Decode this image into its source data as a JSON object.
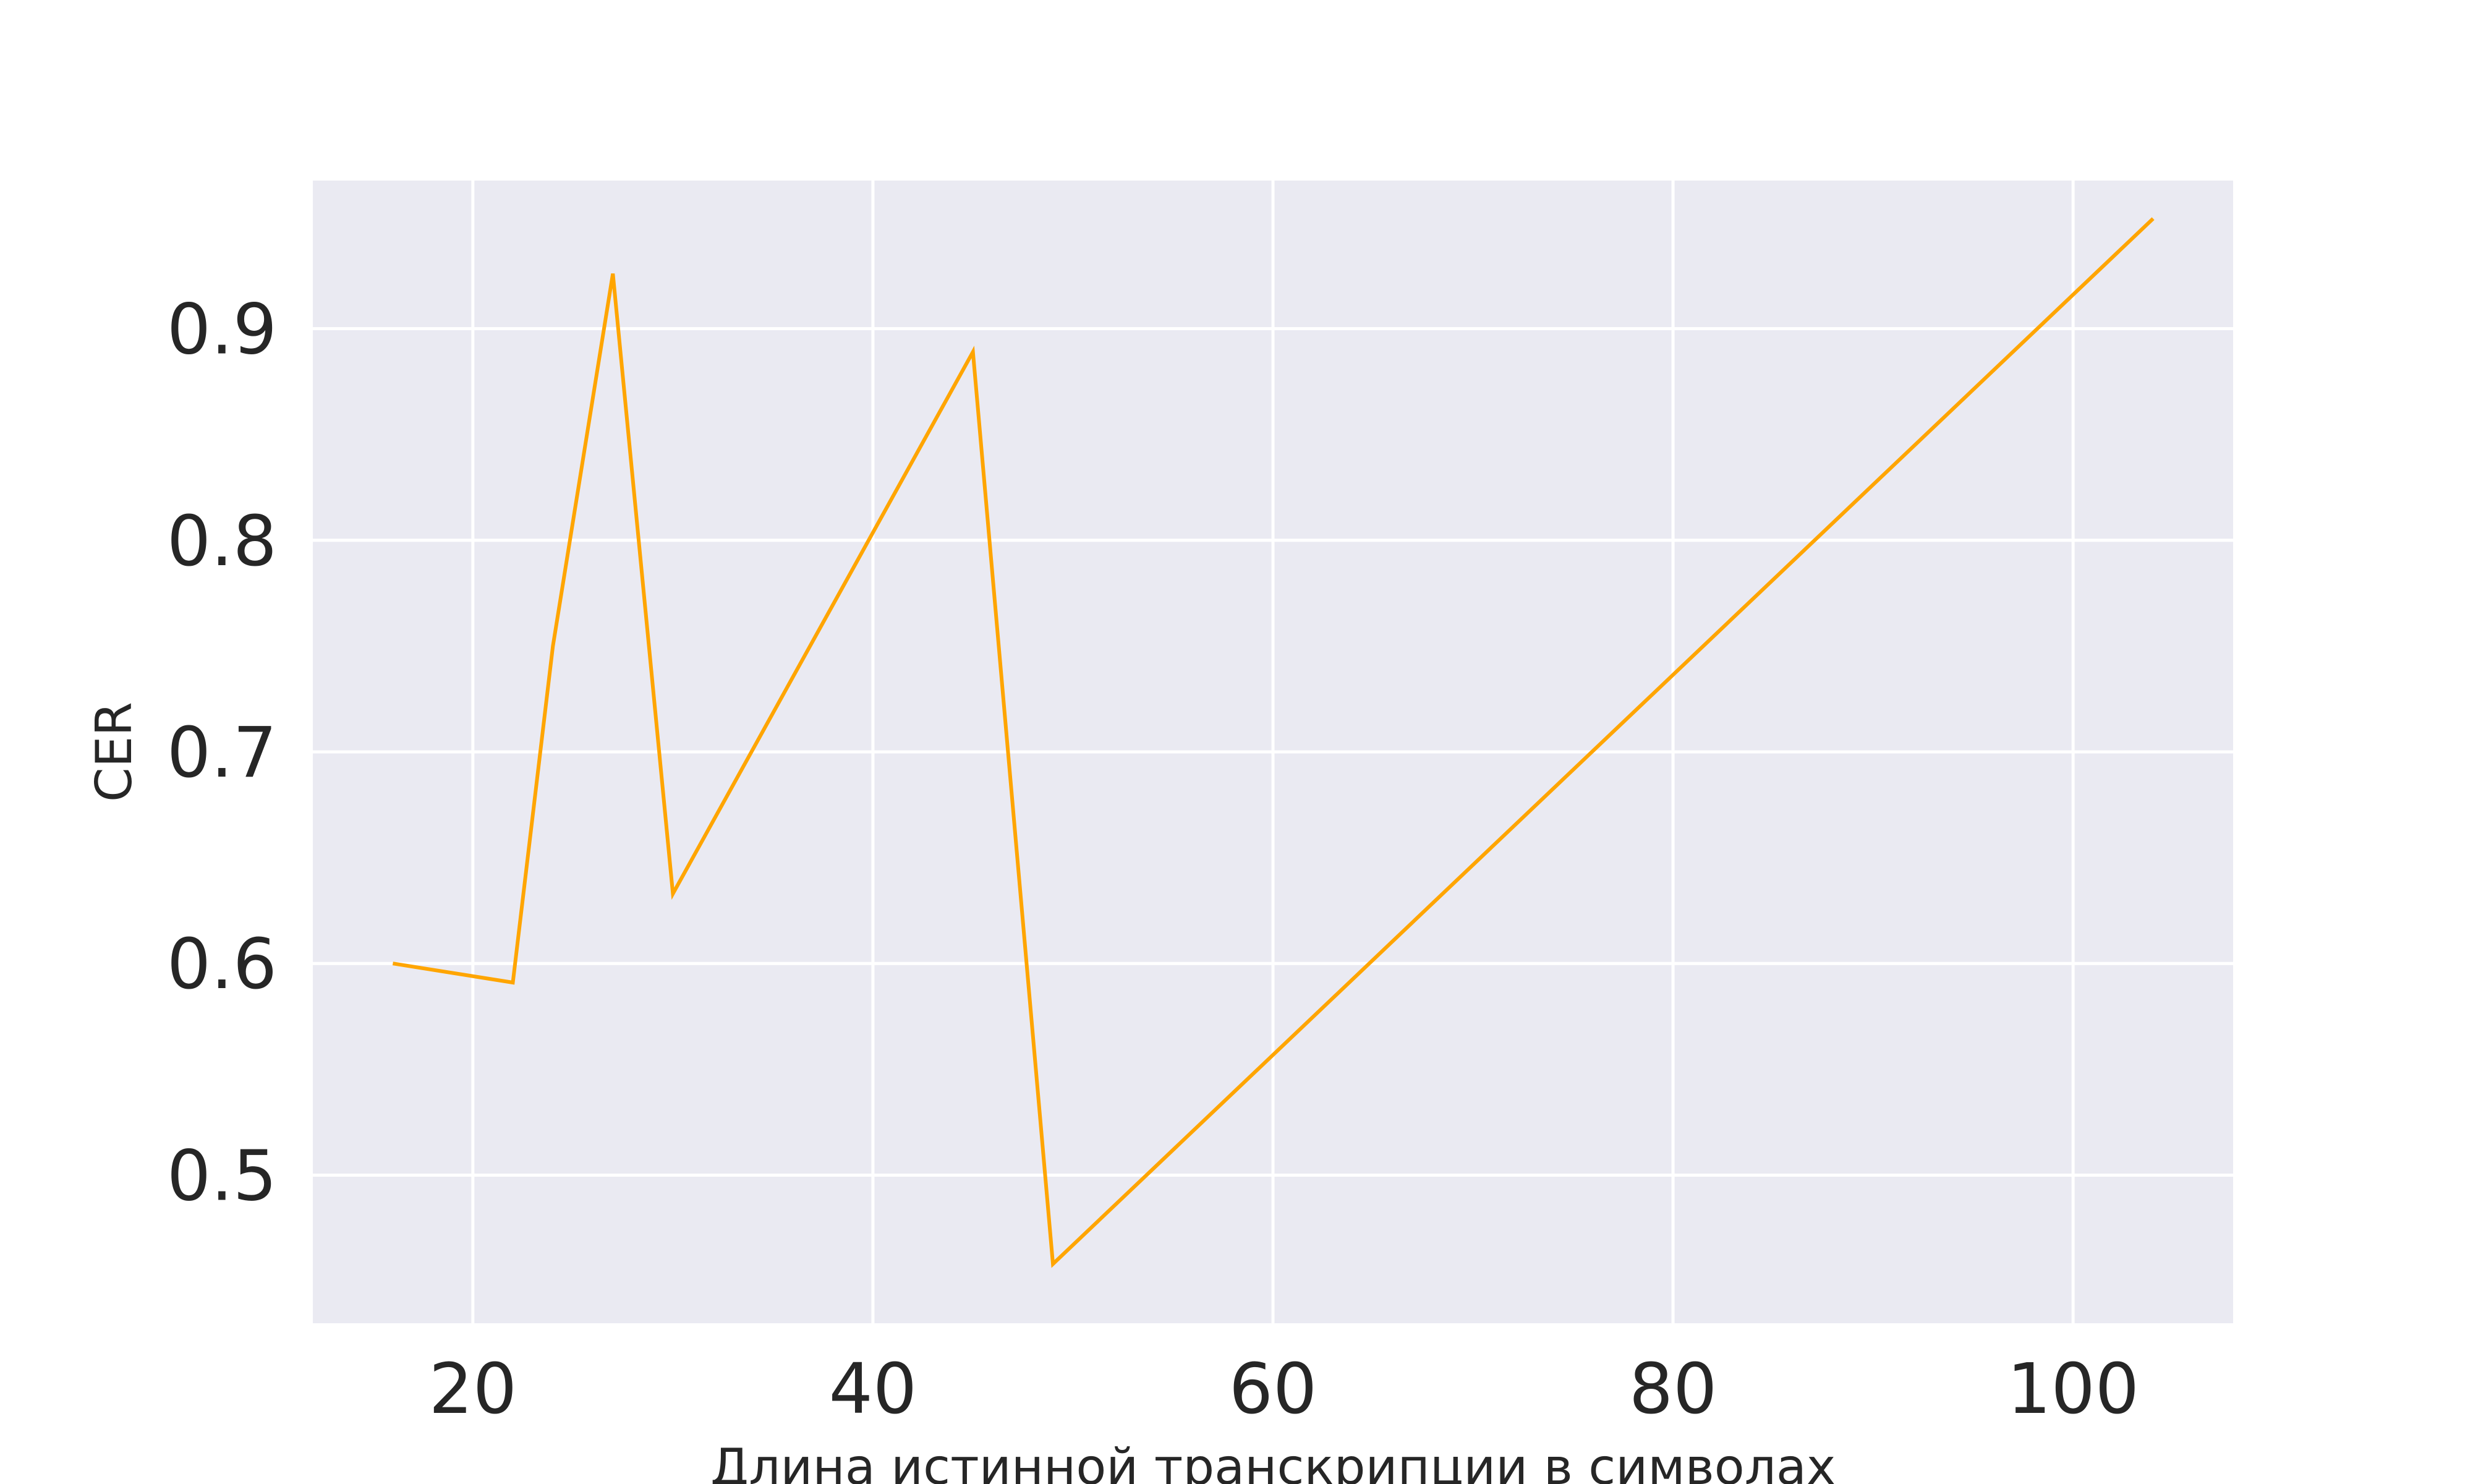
{
  "chart_data": {
    "type": "line",
    "title": "",
    "xlabel": "Длина истинной транскрипции в символах",
    "ylabel": "CER",
    "xlim": [
      12,
      108
    ],
    "ylim": [
      0.43,
      0.97
    ],
    "xticks": [
      20,
      40,
      60,
      80,
      100
    ],
    "yticks": [
      0.5,
      0.6,
      0.7,
      0.8,
      0.9
    ],
    "grid": true,
    "legend": "none",
    "series": [
      {
        "color": "#ffa500",
        "x": [
          16,
          22,
          24,
          27,
          30,
          45,
          49,
          104
        ],
        "y": [
          0.6,
          0.591,
          0.75,
          0.926,
          0.633,
          0.889,
          0.458,
          0.952
        ]
      }
    ]
  }
}
